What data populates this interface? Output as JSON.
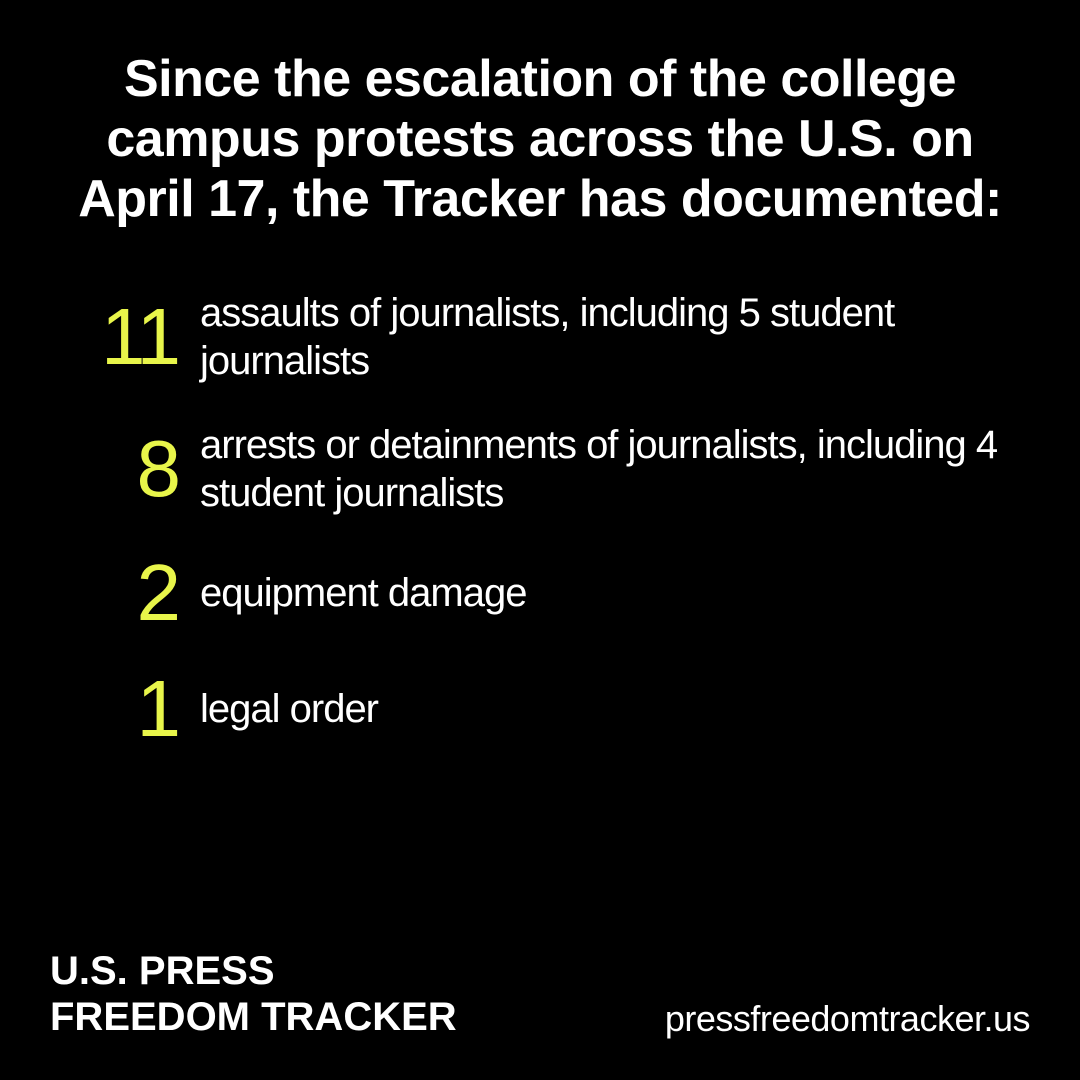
{
  "headline": "Since the escalation of the college campus protests across the U.S. on April 17, the Tracker has documented:",
  "stats": [
    {
      "number": "11",
      "text": "assaults of journalists, including 5 student journalists"
    },
    {
      "number": "8",
      "text": "arrests or detainments of journalists, including 4 student journalists"
    },
    {
      "number": "2",
      "text": "equipment damage"
    },
    {
      "number": "1",
      "text": "legal order"
    }
  ],
  "footer": {
    "org_line1": "U.S. PRESS",
    "org_line2": "FREEDOM TRACKER",
    "website": "pressfreedomtracker.us"
  },
  "styling": {
    "background_color": "#000000",
    "text_color": "#ffffff",
    "accent_color": "#e8f54a",
    "headline_fontsize": 52,
    "headline_weight": 700,
    "number_fontsize": 80,
    "number_weight": 400,
    "stat_text_fontsize": 40,
    "org_fontsize": 40,
    "website_fontsize": 36
  }
}
